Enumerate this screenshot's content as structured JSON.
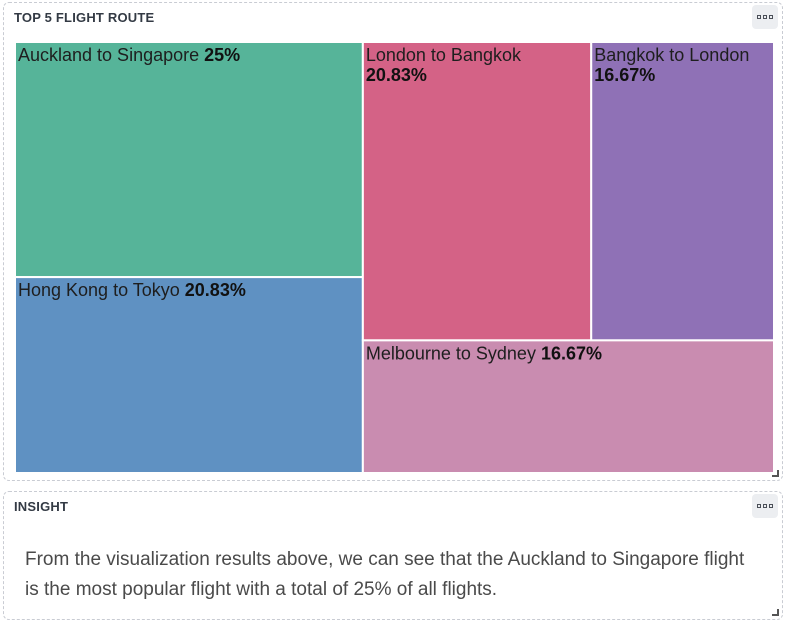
{
  "chart_panel": {
    "title": "TOP 5 FLIGHT ROUTE"
  },
  "insight_panel": {
    "title": "INSIGHT",
    "text": "From the visualization results above, we can see that the Auckland to Singapore flight is the most popular flight with a total of 25% of all flights."
  },
  "chart_data": {
    "type": "treemap",
    "title": "TOP 5 FLIGHT ROUTE",
    "items": [
      {
        "name": "Auckland to Singapore",
        "value": 25,
        "label": "25%",
        "color": "#56b499"
      },
      {
        "name": "Hong Kong to Tokyo",
        "value": 20.83,
        "label": "20.83%",
        "color": "#5f91c2"
      },
      {
        "name": "London to Bangkok",
        "value": 20.83,
        "label": "20.83%",
        "color": "#d46286"
      },
      {
        "name": "Bangkok to London",
        "value": 16.67,
        "label": "16.67%",
        "color": "#8f71b6"
      },
      {
        "name": "Melbourne to Sydney",
        "value": 16.67,
        "label": "16.67%",
        "color": "#c98cb0"
      }
    ]
  }
}
